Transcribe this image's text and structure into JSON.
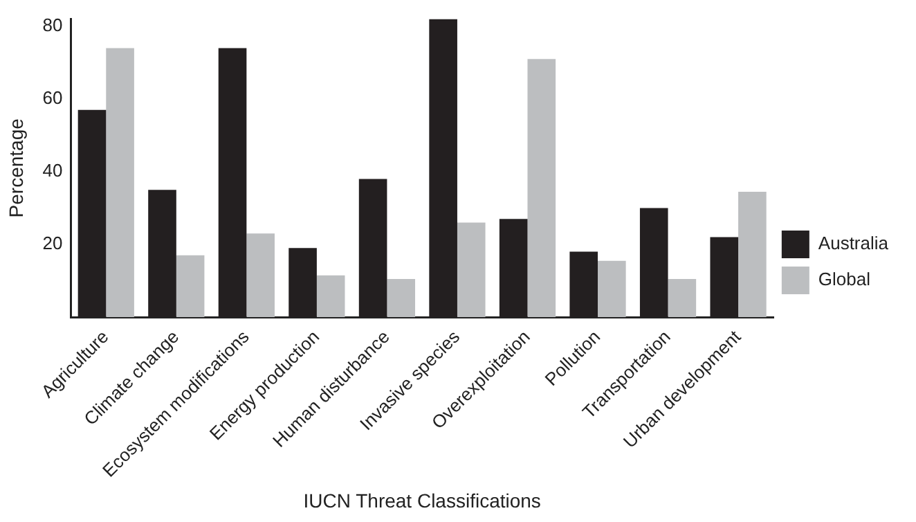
{
  "chart_data": {
    "type": "bar",
    "xlabel": "IUCN Threat Classifications",
    "ylabel": "Percentage",
    "categories": [
      "Agriculture",
      "Climate change",
      "Ecosystem modifications",
      "Energy production",
      "Human disturbance",
      "Invasive species",
      "Overexploitation",
      "Pollution",
      "Transportation",
      "Urban development"
    ],
    "series": [
      {
        "name": "Australia",
        "color": "#231f20",
        "values": [
          57,
          35,
          74,
          19,
          38,
          82,
          27,
          18,
          30,
          22
        ]
      },
      {
        "name": "Global",
        "color": "#bcbec0",
        "values": [
          74,
          17,
          23,
          11.5,
          10.5,
          26,
          71,
          15.5,
          10.5,
          34.5
        ]
      }
    ],
    "ylim": [
      0,
      82
    ],
    "yticks": [
      20,
      40,
      60,
      80
    ],
    "grid": false,
    "legend": "right"
  }
}
